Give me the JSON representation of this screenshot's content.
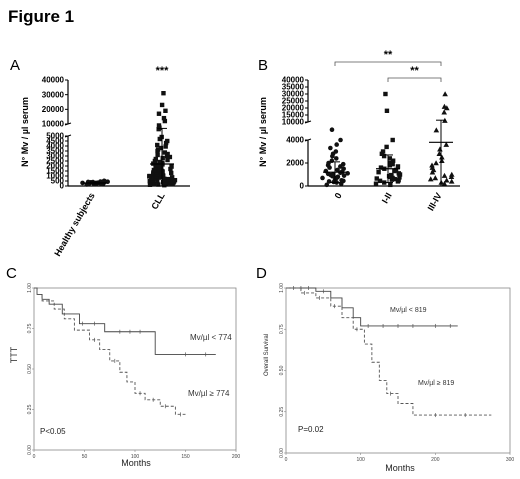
{
  "figure_title": "Figure 1",
  "chart_data": [
    {
      "panel": "A",
      "type": "scatter",
      "ylabel": "N° Mv / µl serum",
      "categories": [
        "Healthy subjects",
        "CLL"
      ],
      "y_ticks_lower": [
        "0",
        "500",
        "1000",
        "1500",
        "2000",
        "2500",
        "3000",
        "3500",
        "4000",
        "4500",
        "5000"
      ],
      "y_ticks_upper": [
        "10000",
        "20000",
        "30000",
        "40000"
      ],
      "significance": "***",
      "series": [
        {
          "category": "Healthy subjects",
          "marker": "circle",
          "mean": 300,
          "sd": 110,
          "values": [
            150,
            180,
            200,
            220,
            240,
            250,
            260,
            280,
            290,
            300,
            310,
            320,
            330,
            340,
            350,
            370,
            390,
            410,
            430,
            450,
            480,
            520
          ]
        },
        {
          "category": "CLL",
          "marker": "square",
          "mean": 2200,
          "sd": 4800,
          "values": [
            80,
            120,
            150,
            180,
            200,
            230,
            260,
            280,
            300,
            320,
            340,
            360,
            380,
            400,
            420,
            440,
            460,
            480,
            500,
            520,
            540,
            560,
            580,
            600,
            630,
            660,
            690,
            720,
            750,
            780,
            810,
            840,
            870,
            900,
            930,
            960,
            1000,
            1040,
            1080,
            1120,
            1160,
            1200,
            1250,
            1300,
            1350,
            1400,
            1450,
            1500,
            1550,
            1600,
            1650,
            1700,
            1760,
            1820,
            1880,
            1940,
            2000,
            2080,
            2160,
            2240,
            2320,
            2400,
            2500,
            2600,
            2700,
            2800,
            2900,
            3000,
            3100,
            3200,
            3350,
            3500,
            3650,
            3800,
            3950,
            4100,
            4300,
            4500,
            4700,
            4900,
            6500,
            7500,
            9000,
            12000,
            14000,
            17000,
            19000,
            23000,
            31000
          ]
        }
      ]
    },
    {
      "panel": "B",
      "type": "scatter",
      "ylabel": "N° Mv / µl serum",
      "categories": [
        "0",
        "I-II",
        "III-IV"
      ],
      "y_ticks_lower": [
        "0",
        "2000",
        "4000"
      ],
      "y_ticks_upper": [
        "10000",
        "15000",
        "20000",
        "25000",
        "30000",
        "35000",
        "40000"
      ],
      "brackets": [
        {
          "from": "0",
          "to": "III-IV",
          "label": "**"
        },
        {
          "from": "I-II",
          "to": "III-IV",
          "label": "**"
        }
      ],
      "series": [
        {
          "category": "0",
          "marker": "circle",
          "mean": 1200,
          "sd": 900,
          "values": [
            100,
            200,
            300,
            350,
            400,
            450,
            500,
            550,
            600,
            650,
            700,
            750,
            800,
            850,
            900,
            950,
            1000,
            1050,
            1100,
            1150,
            1200,
            1250,
            1300,
            1400,
            1500,
            1600,
            1700,
            1800,
            1900,
            2000,
            2200,
            2400,
            2600,
            2800,
            3000,
            3300,
            3600,
            4000,
            4500
          ]
        },
        {
          "category": "I-II",
          "marker": "square",
          "mean": 1500,
          "sd": 1200,
          "values": [
            100,
            200,
            300,
            400,
            450,
            500,
            550,
            600,
            650,
            700,
            750,
            800,
            850,
            900,
            950,
            1000,
            1100,
            1200,
            1300,
            1400,
            1500,
            1600,
            1700,
            1800,
            1900,
            2000,
            2200,
            2400,
            2600,
            2800,
            3000,
            3400,
            4000,
            18000,
            30000
          ]
        },
        {
          "category": "III-IV",
          "marker": "triangle",
          "mean": 3800,
          "sd": 7500,
          "values": [
            200,
            300,
            400,
            500,
            600,
            700,
            800,
            900,
            1000,
            1200,
            1400,
            1600,
            1800,
            2000,
            2200,
            2500,
            2800,
            3200,
            3600,
            4200,
            11000,
            17000,
            20000,
            21000,
            30000
          ]
        }
      ]
    },
    {
      "panel": "C",
      "type": "line",
      "subtype": "kaplan-meier",
      "xlabel": "Months",
      "ylabel": "TTT",
      "x_ticks": [
        "0",
        "50",
        "100",
        "150",
        "200"
      ],
      "y_ticks": [
        "0.00",
        "0.25",
        "0.50",
        "0.75",
        "1.00"
      ],
      "xlim": [
        0,
        200
      ],
      "ylim": [
        0,
        1
      ],
      "p_value": "P<0.05",
      "series": [
        {
          "name": "Mv/µl < 774",
          "style": "solid",
          "x": [
            0,
            3,
            8,
            15,
            28,
            45,
            70,
            120,
            180
          ],
          "y": [
            1.0,
            0.96,
            0.93,
            0.9,
            0.84,
            0.78,
            0.73,
            0.59,
            0.59
          ],
          "censor_x": [
            48,
            60,
            85,
            95,
            105,
            150,
            170
          ]
        },
        {
          "name": "Mv/µl ≥ 774",
          "style": "dashed",
          "x": [
            0,
            3,
            8,
            20,
            30,
            40,
            55,
            65,
            75,
            85,
            92,
            100,
            110,
            125,
            140,
            150
          ],
          "y": [
            1.0,
            0.96,
            0.92,
            0.87,
            0.81,
            0.74,
            0.68,
            0.62,
            0.55,
            0.48,
            0.42,
            0.35,
            0.31,
            0.27,
            0.22,
            0.22
          ],
          "censor_x": [
            60,
            80,
            105,
            118,
            130,
            145
          ]
        }
      ]
    },
    {
      "panel": "D",
      "type": "line",
      "subtype": "kaplan-meier",
      "xlabel": "Months",
      "ylabel": "Overall Survival",
      "x_ticks": [
        "0",
        "100",
        "200",
        "300"
      ],
      "y_ticks": [
        "0.00",
        "0.25",
        "0.50",
        "0.75",
        "1.00"
      ],
      "xlim": [
        0,
        300
      ],
      "ylim": [
        0,
        1
      ],
      "p_value": "P=0.02",
      "series": [
        {
          "name": "Mv/µl < 819",
          "style": "solid",
          "x": [
            0,
            40,
            60,
            75,
            90,
            100,
            230
          ],
          "y": [
            1.0,
            0.98,
            0.94,
            0.88,
            0.82,
            0.77,
            0.77
          ],
          "censor_x": [
            10,
            20,
            30,
            50,
            110,
            130,
            150,
            170,
            200,
            220
          ]
        },
        {
          "name": "Mv/µl ≥ 819",
          "style": "dashed",
          "x": [
            0,
            20,
            40,
            60,
            75,
            90,
            105,
            115,
            125,
            135,
            150,
            170,
            275
          ],
          "y": [
            1.0,
            0.97,
            0.94,
            0.89,
            0.82,
            0.75,
            0.66,
            0.55,
            0.44,
            0.36,
            0.3,
            0.23,
            0.23
          ],
          "censor_x": [
            25,
            45,
            65,
            95,
            140,
            200,
            240
          ]
        }
      ]
    }
  ]
}
